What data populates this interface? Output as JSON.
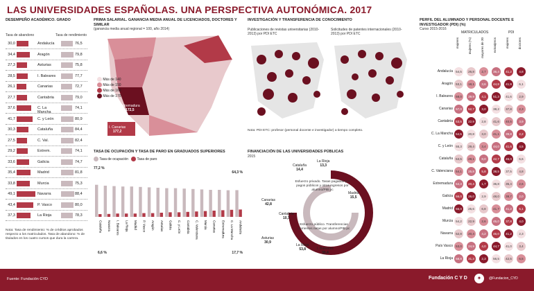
{
  "title": "LAS UNIVERSIDADES ESPAÑOLAS. UNA PERSPECTIVA AUTONÓMICA. 2017",
  "ranking": {
    "title": "DESEMPEÑO ACADÉMICO. GRADO",
    "left_header": "Tasa de abandono",
    "right_header": "Tasa de rendimiento",
    "rows": [
      {
        "left": "30,0",
        "name": "Andalucía",
        "right": "76,5",
        "left_pct": 0.55,
        "right_pct": 0.76
      },
      {
        "left": "34,4",
        "name": "Aragón",
        "right": "79,8",
        "left_pct": 0.63,
        "right_pct": 0.8
      },
      {
        "left": "27,3",
        "name": "Asturias",
        "right": "75,8",
        "left_pct": 0.5,
        "right_pct": 0.75
      },
      {
        "left": "28,5",
        "name": "I. Baleares",
        "right": "77,7",
        "left_pct": 0.52,
        "right_pct": 0.78
      },
      {
        "left": "26,1",
        "name": "Canarias",
        "right": "72,7",
        "left_pct": 0.48,
        "right_pct": 0.72
      },
      {
        "left": "27,7",
        "name": "Cantabria",
        "right": "79,0",
        "left_pct": 0.51,
        "right_pct": 0.79
      },
      {
        "left": "37,6",
        "name": "C. La Mancha",
        "right": "74,1",
        "left_pct": 0.69,
        "right_pct": 0.74
      },
      {
        "left": "41,7",
        "name": "C. y León",
        "right": "80,9",
        "left_pct": 0.76,
        "right_pct": 0.81
      },
      {
        "left": "30,3",
        "name": "Cataluña",
        "right": "84,4",
        "left_pct": 0.55,
        "right_pct": 0.84
      },
      {
        "left": "27,5",
        "name": "C. Val.",
        "right": "82,4",
        "left_pct": 0.5,
        "right_pct": 0.82
      },
      {
        "left": "29,2",
        "name": "Extrem.",
        "right": "74,1",
        "left_pct": 0.53,
        "right_pct": 0.74
      },
      {
        "left": "33,6",
        "name": "Galicia",
        "right": "74,7",
        "left_pct": 0.61,
        "right_pct": 0.75
      },
      {
        "left": "35,4",
        "name": "Madrid",
        "right": "81,8",
        "left_pct": 0.65,
        "right_pct": 0.82
      },
      {
        "left": "33,8",
        "name": "Murcia",
        "right": "75,3",
        "left_pct": 0.62,
        "right_pct": 0.75
      },
      {
        "left": "49,1",
        "name": "Navarra",
        "right": "88,4",
        "left_pct": 0.9,
        "right_pct": 0.88
      },
      {
        "left": "43,4",
        "name": "P. Vasco",
        "right": "80,0",
        "left_pct": 0.79,
        "right_pct": 0.8
      },
      {
        "left": "37,3",
        "name": "La Rioja",
        "right": "78,3",
        "left_pct": 0.68,
        "right_pct": 0.78
      }
    ],
    "note": "Nota: Tasa de rendimiento: % de créditos aprobados respecto a los matriculados. Tasa de abandono: % de titulados en los cuatro cursos que dura la carrera."
  },
  "map": {
    "title": "PRIMA SALARIAL. GANANCIA MEDIA ANUAL DE LICENCIADOS, DOCTORES Y SIMILAR",
    "subtitle": "(ganancia media anual regional = 100, año 2014)",
    "legend": [
      "Más de 140",
      "Más de 150",
      "Más de 160",
      "Más de 170"
    ],
    "labels": [
      {
        "name": "Extremadura",
        "value": "172,5"
      },
      {
        "name": "I. Canarias",
        "value": "177,2"
      }
    ]
  },
  "research": {
    "title": "INVESTIGACIÓN Y TRANSFERENCIA DE CONOCIMIENTO",
    "left_sub": "Publicaciones de revistas universitarias (2010-2013) por PDI ETC",
    "right_sub": "Solicitudes de patentes internacionales (2010-2013) por PDI ETC",
    "note": "Nota: PDI ETC: profesor (personal docente e investigador) a tiempo completo."
  },
  "occupancy": {
    "title": "TASA DE OCUPACIÓN Y TASA DE PARO EN GRADUADOS SUPERIORES",
    "legend_occ": "Tasa de ocupación",
    "legend_unemp": "Tasa de paro",
    "top_left": "77,2 %",
    "top_right": "64,3 %",
    "bottom_left": "6,6 %",
    "bottom_right": "17,7 %",
    "regions": [
      "Cataluña",
      "Navarra",
      "I. Baleares",
      "La Rioja",
      "Madrid",
      "P. Vasco",
      "Aragón",
      "Asturias",
      "Galicia",
      "C. y León",
      "Cantabria",
      "C. Valenciana",
      "Murcia",
      "Canarias",
      "Extremadura",
      "C. La Mancha",
      "Andalucía"
    ],
    "occ": [
      77.2,
      75,
      74,
      73,
      73,
      72,
      71,
      70,
      69,
      69,
      68,
      67,
      66,
      65,
      65,
      64,
      64.3
    ],
    "unemp": [
      6.6,
      7,
      8,
      8,
      8,
      9,
      9,
      10,
      11,
      11,
      12,
      13,
      14,
      15,
      16,
      17,
      17.7
    ]
  },
  "finance": {
    "title": "FINANCIACIÓN DE LAS UNIVERSIDADES PÚBLICAS",
    "year": "2015",
    "center_top": "Esfuerzo privado. Tasas pagadas por pagos públicos y otros ingresos por alumno/PIB pc",
    "center_bottom": "Esfuerzo público. Transferencias corrientes netas por alumno/PIB pc",
    "labels": [
      {
        "name": "Cataluña",
        "value": "14,4"
      },
      {
        "name": "La Rioja",
        "value": "13,3"
      },
      {
        "name": "Madrid",
        "value": "15,5"
      },
      {
        "name": "Asturias",
        "value": "30,9"
      },
      {
        "name": "Canarias",
        "value": "42,8"
      },
      {
        "name": "La Rioja",
        "value": "53,8"
      },
      {
        "name": "I. Baleares",
        "value": "30,4"
      },
      {
        "name": "Cantabria",
        "value": "10,7"
      }
    ]
  },
  "staff": {
    "title": "PERFIL DEL ALUMNADO Y PERSONAL DOCENTE E INVESTIGADOR (PDI) (%)",
    "subtitle": "Curso 2015-2016",
    "col_groups": [
      "MATRICULADOS",
      "PDI"
    ],
    "columns": [
      "mujeres",
      "mujeres (%)",
      "mayores de 30",
      "extranjeros",
      "mujeres",
      "doctores"
    ],
    "rows": [
      {
        "name": "Andalucía",
        "vals": [
          "54,5",
          "26,8",
          "2,7",
          "36,4",
          "41,2",
          "4,8"
        ]
      },
      {
        "name": "Aragón",
        "vals": [
          "53,1",
          "18,1",
          "3,6",
          "44,8",
          "41,9",
          "6,1"
        ]
      },
      {
        "name": "I. Baleares",
        "vals": [
          "58,0",
          "39,9",
          "4,1",
          "51,3",
          "41,6",
          "2,9"
        ]
      },
      {
        "name": "Canarias",
        "vals": [
          "57,0",
          "52,7",
          "3,0",
          "38,2",
          "37,8",
          "2,3"
        ]
      },
      {
        "name": "Cantabria",
        "vals": [
          "53,5",
          "22,9",
          "2,8",
          "41,6",
          "40,5",
          "3,9"
        ]
      },
      {
        "name": "C. La Mancha",
        "vals": [
          "54,5",
          "20,8",
          "3,0",
          "41,1",
          "39,8",
          "2,2"
        ]
      },
      {
        "name": "C. y León",
        "vals": [
          "55,3",
          "29,4",
          "3,4",
          "44,0",
          "41,6",
          "4,5"
        ]
      },
      {
        "name": "Cataluña",
        "vals": [
          "53,5",
          "29,1",
          "8,0",
          "42,7",
          "45,0",
          "6,6"
        ]
      },
      {
        "name": "C. Valenciana",
        "vals": [
          "54,1",
          "25,8",
          "5,8",
          "38,5",
          "37,5",
          "4,8"
        ]
      },
      {
        "name": "Extremadura",
        "vals": [
          "54,3",
          "20,4",
          "1,7",
          "36,8",
          "35,4",
          "2,6"
        ]
      },
      {
        "name": "Galicia",
        "vals": [
          "56,0",
          "26,0",
          "2,9",
          "48,0",
          "38,7",
          "2,0"
        ]
      },
      {
        "name": "Madrid",
        "vals": [
          "55,0",
          "25,6",
          "6,8",
          "41,7",
          "41,2",
          "5,1"
        ]
      },
      {
        "name": "Murcia",
        "vals": [
          "54,2",
          "22,9",
          "2,6",
          "45,0",
          "37,8",
          "4,0"
        ]
      },
      {
        "name": "Navarra",
        "vals": [
          "52,8",
          "20,4",
          "4,2",
          "46,0",
          "41,2",
          "2,3"
        ]
      },
      {
        "name": "País Vasco",
        "vals": [
          "53,0",
          "24,9",
          "4,0",
          "44,7",
          "41,0",
          "3,4"
        ]
      },
      {
        "name": "La Rioja",
        "vals": [
          "58,8",
          "31,3",
          "2,3",
          "56,5",
          "42,5",
          "6,5"
        ]
      }
    ]
  },
  "footer": {
    "source": "Fuente: Fundación CYD",
    "brand": "Fundación C Y D",
    "handle": "@Fundacion_CYD"
  },
  "colors": {
    "accent": "#8a1a2b",
    "bar": "#b23a48",
    "light": "#c9b9bd"
  }
}
